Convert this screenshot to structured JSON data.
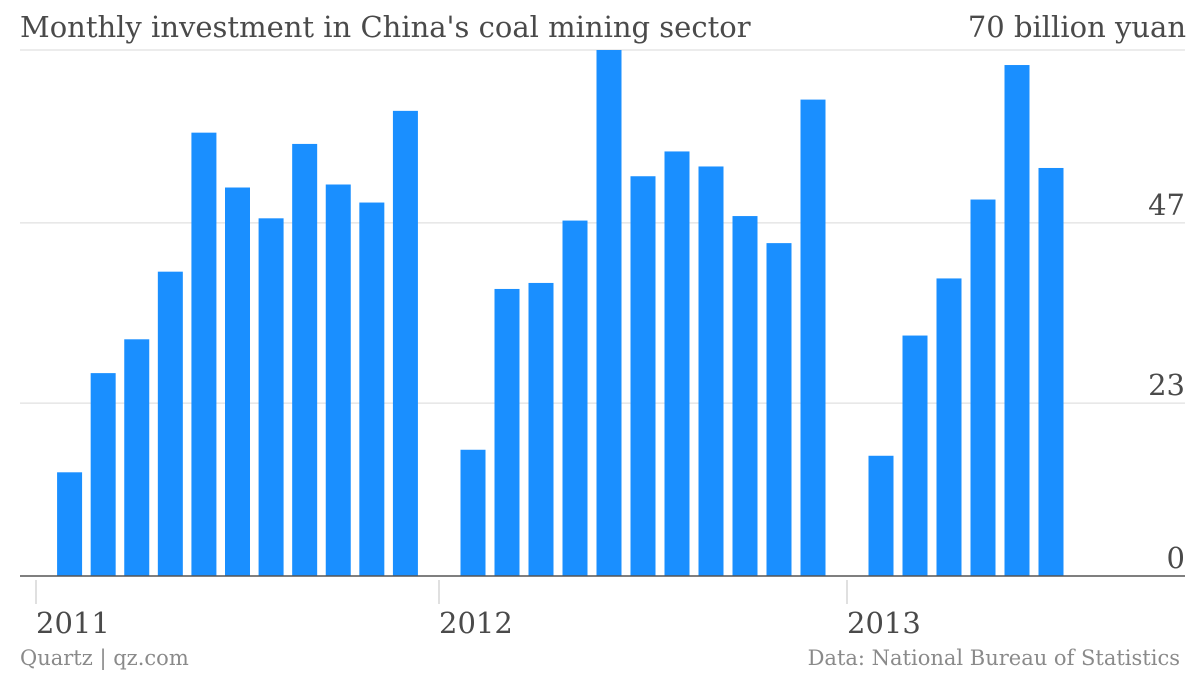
{
  "header": {
    "title": "Monthly investment in China's coal mining sector",
    "unit_label": "70 billion yuan"
  },
  "footer": {
    "source_left": "Quartz | qz.com",
    "source_right": "Data: National Bureau of Statistics"
  },
  "colors": {
    "bar": "#1a8fff",
    "grid": "#d9d9d9",
    "axis": "#555555",
    "text": "#4a4a4a"
  },
  "chart_data": {
    "type": "bar",
    "title": "Monthly investment in China's coal mining sector",
    "ylabel": "70 billion yuan",
    "ylim": [
      0,
      70
    ],
    "yticks": [
      {
        "value": 0,
        "label": "0"
      },
      {
        "value": 23,
        "label": "23"
      },
      {
        "value": 47,
        "label": "47"
      },
      {
        "value": 70,
        "label": ""
      }
    ],
    "xticks": [
      {
        "value": 2011,
        "label": "2011"
      },
      {
        "value": 2012,
        "label": "2012"
      },
      {
        "value": 2013,
        "label": "2013"
      }
    ],
    "grid": true,
    "series": [
      {
        "values": [
          {
            "x": "2011-02",
            "y": 13.8
          },
          {
            "x": "2011-03",
            "y": 27.0
          },
          {
            "x": "2011-04",
            "y": 31.5
          },
          {
            "x": "2011-05",
            "y": 40.5
          },
          {
            "x": "2011-06",
            "y": 59.0
          },
          {
            "x": "2011-07",
            "y": 51.7
          },
          {
            "x": "2011-08",
            "y": 47.6
          },
          {
            "x": "2011-09",
            "y": 57.5
          },
          {
            "x": "2011-10",
            "y": 52.1
          },
          {
            "x": "2011-11",
            "y": 49.7
          },
          {
            "x": "2011-12",
            "y": 61.9
          },
          {
            "x": "2012-02",
            "y": 16.8
          },
          {
            "x": "2012-03",
            "y": 38.2
          },
          {
            "x": "2012-04",
            "y": 39.0
          },
          {
            "x": "2012-05",
            "y": 47.3
          },
          {
            "x": "2012-06",
            "y": 70.0
          },
          {
            "x": "2012-07",
            "y": 53.2
          },
          {
            "x": "2012-08",
            "y": 56.5
          },
          {
            "x": "2012-09",
            "y": 54.5
          },
          {
            "x": "2012-10",
            "y": 47.9
          },
          {
            "x": "2012-11",
            "y": 44.3
          },
          {
            "x": "2012-12",
            "y": 63.4
          },
          {
            "x": "2013-02",
            "y": 16.0
          },
          {
            "x": "2013-03",
            "y": 32.0
          },
          {
            "x": "2013-04",
            "y": 39.6
          },
          {
            "x": "2013-05",
            "y": 50.1
          },
          {
            "x": "2013-06",
            "y": 68.0
          },
          {
            "x": "2013-07",
            "y": 54.3
          }
        ]
      }
    ]
  }
}
